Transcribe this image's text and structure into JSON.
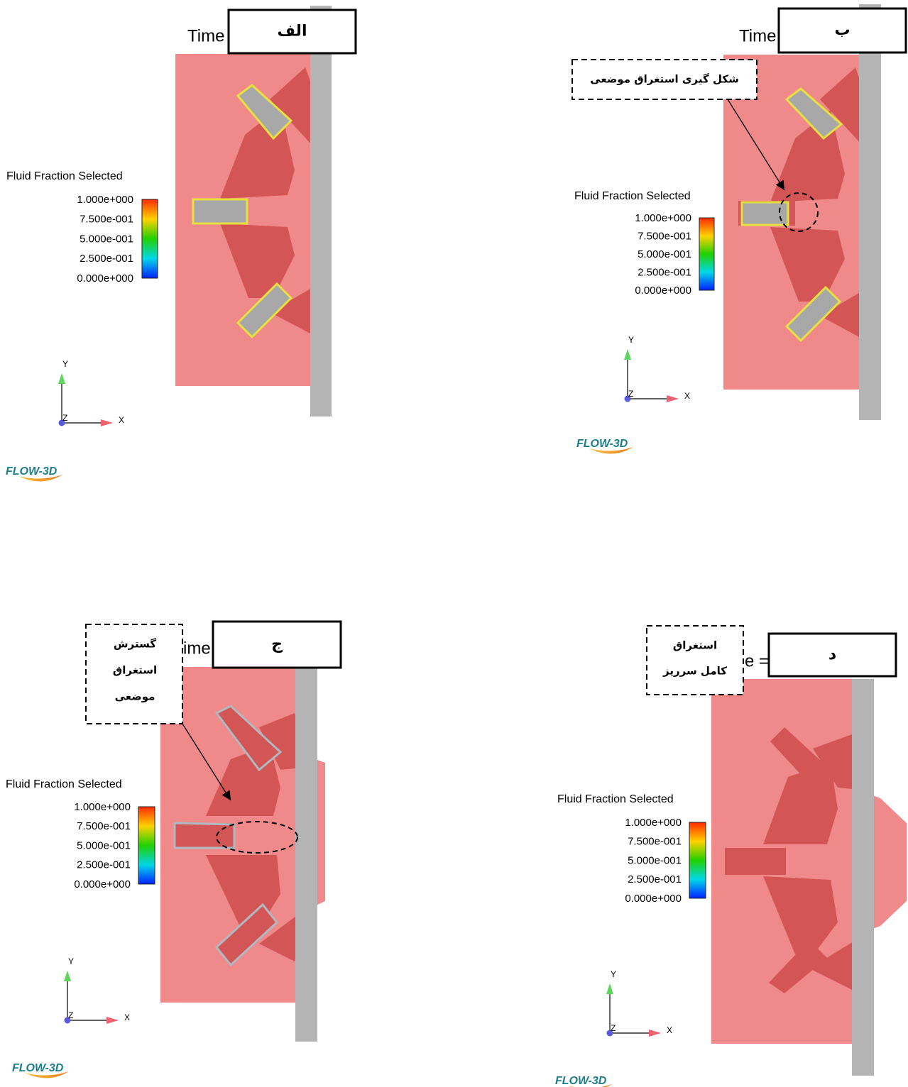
{
  "panels": [
    {
      "label": "الف",
      "time_text": "Time",
      "legend_title": "Fluid Fraction Selected",
      "colorbar_ticks": [
        "1.000e+000",
        "7.500e-001",
        "5.000e-001",
        "2.500e-001",
        "0.000e+000"
      ],
      "axis_y": "Y",
      "axis_x": "X",
      "axis_z": "Z",
      "logo": "FLOW-3D",
      "annotation": []
    },
    {
      "label": "ب",
      "time_text": "Time",
      "legend_title": "Fluid Fraction Selected",
      "colorbar_ticks": [
        "1.000e+000",
        "7.500e-001",
        "5.000e-001",
        "2.500e-001",
        "0.000e+000"
      ],
      "axis_y": "Y",
      "axis_x": "X",
      "axis_z": "Z",
      "logo": "FLOW-3D",
      "annotation": [
        "شکل گیری استغراق موضعی"
      ]
    },
    {
      "label": "ج",
      "time_text": "ime",
      "legend_title": "Fluid Fraction Selected",
      "colorbar_ticks": [
        "1.000e+000",
        "7.500e-001",
        "5.000e-001",
        "2.500e-001",
        "0.000e+000"
      ],
      "axis_y": "Y",
      "axis_x": "X",
      "axis_z": "Z",
      "logo": "FLOW-3D",
      "annotation": [
        "گسترش",
        "استغراق",
        "موضعی"
      ]
    },
    {
      "label": "د",
      "time_text": "e =",
      "legend_title": "Fluid Fraction Selected",
      "colorbar_ticks": [
        "1.000e+000",
        "7.500e-001",
        "5.000e-001",
        "2.500e-001",
        "0.000e+000"
      ],
      "axis_y": "Y",
      "axis_x": "X",
      "axis_z": "Z",
      "logo": "FLOW-3D",
      "annotation": [
        "استغراق",
        "کامل سرریز"
      ]
    }
  ]
}
